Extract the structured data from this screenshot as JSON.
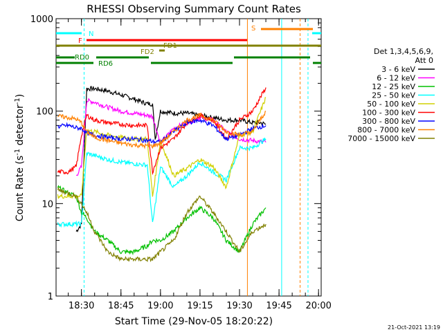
{
  "chart_data": {
    "type": "line",
    "title": "RHESSI Observing Summary Count Rates",
    "xlabel": "Start Time (29-Nov-05 18:20:22)",
    "ylabel_main": "Count Rate (s",
    "ylabel_sup": "-1",
    "ylabel_mid": " detector",
    "ylabel_end": ")",
    "footer": "21-Oct-2021 13:19",
    "yscale": "log",
    "ylim": [
      1,
      1000
    ],
    "xlim_minutes": [
      18.33,
      20.0
    ],
    "x_ticks": [
      "18:30",
      "18:45",
      "19:00",
      "19:15",
      "19:30",
      "19:45",
      "20:00"
    ],
    "y_ticks": [
      "1",
      "10",
      "100",
      "1000"
    ],
    "legend_header": [
      "Det 1,3,4,5,6,9,",
      "Att 0"
    ],
    "legend_placement": "right",
    "series": [
      {
        "name": "3 - 6 keV",
        "color": "#000000",
        "x": [
          "18:23",
          "18:25",
          "18:28",
          "18:30",
          "18:32",
          "18:35",
          "18:40",
          "18:45",
          "18:50",
          "18:55",
          "18:57",
          "18:58",
          "19:00",
          "19:05",
          "19:10",
          "19:15",
          "19:20",
          "19:25",
          "19:30",
          "19:35",
          "19:38",
          "19:40"
        ],
        "y": [
          null,
          null,
          5,
          6,
          175,
          175,
          165,
          150,
          135,
          120,
          120,
          50,
          100,
          95,
          95,
          90,
          85,
          80,
          80,
          75,
          75,
          72
        ]
      },
      {
        "name": "6 - 12 keV",
        "color": "#ff00ff",
        "x": [
          "18:23",
          "18:25",
          "18:28",
          "18:30",
          "18:32",
          "18:35",
          "18:40",
          "18:45",
          "18:50",
          "18:55",
          "18:57",
          "19:00",
          "19:05",
          "19:10",
          "19:15",
          "19:20",
          "19:25",
          "19:30",
          "19:35",
          "19:40"
        ],
        "y": [
          null,
          null,
          20,
          25,
          130,
          125,
          110,
          100,
          95,
          90,
          88,
          45,
          65,
          75,
          85,
          80,
          60,
          50,
          48,
          46
        ]
      },
      {
        "name": "12 - 25 keV",
        "color": "#00c000",
        "x": [
          "18:21",
          "18:25",
          "18:28",
          "18:30",
          "18:32",
          "18:35",
          "18:40",
          "18:45",
          "18:50",
          "18:55",
          "18:57",
          "19:00",
          "19:05",
          "19:10",
          "19:15",
          "19:20",
          "19:25",
          "19:30",
          "19:35",
          "19:40"
        ],
        "y": [
          15,
          13,
          12,
          8,
          7,
          5,
          4,
          3,
          3,
          3.5,
          4,
          4,
          5,
          7,
          9,
          7,
          4,
          3,
          6,
          9
        ]
      },
      {
        "name": "25 - 50 keV",
        "color": "#00ffff",
        "x": [
          "18:21",
          "18:25",
          "18:28",
          "18:30",
          "18:32",
          "18:35",
          "18:40",
          "18:45",
          "18:50",
          "18:55",
          "18:57",
          "19:00",
          "19:05",
          "19:10",
          "19:15",
          "19:20",
          "19:25",
          "19:30",
          "19:35",
          "19:40"
        ],
        "y": [
          6,
          6,
          6,
          6,
          35,
          33,
          30,
          28,
          27,
          26,
          6,
          25,
          15,
          20,
          28,
          22,
          18,
          40,
          40,
          50
        ]
      },
      {
        "name": "50 - 100 keV",
        "color": "#d0d000",
        "x": [
          "18:21",
          "18:25",
          "18:28",
          "18:30",
          "18:32",
          "18:35",
          "18:40",
          "18:45",
          "18:50",
          "18:55",
          "18:57",
          "19:00",
          "19:05",
          "19:10",
          "19:15",
          "19:20",
          "19:25",
          "19:30",
          "19:35",
          "19:40"
        ],
        "y": [
          12,
          12,
          12,
          12,
          62,
          60,
          55,
          52,
          50,
          50,
          12,
          48,
          20,
          24,
          30,
          25,
          15,
          55,
          60,
          140
        ]
      },
      {
        "name": "100 - 300 keV",
        "color": "#ff0000",
        "x": [
          "18:21",
          "18:25",
          "18:28",
          "18:30",
          "18:32",
          "18:35",
          "18:40",
          "18:45",
          "18:50",
          "18:55",
          "18:57",
          "19:00",
          "19:05",
          "19:10",
          "19:15",
          "19:20",
          "19:25",
          "19:30",
          "19:35",
          "19:40"
        ],
        "y": [
          22,
          22,
          25,
          55,
          90,
          80,
          75,
          72,
          70,
          70,
          22,
          40,
          50,
          75,
          90,
          80,
          50,
          80,
          100,
          180
        ]
      },
      {
        "name": "300 - 800 keV",
        "color": "#0000ff",
        "x": [
          "18:21",
          "18:25",
          "18:28",
          "18:30",
          "18:32",
          "18:35",
          "18:40",
          "18:45",
          "18:50",
          "18:55",
          "18:57",
          "19:00",
          "19:05",
          "19:10",
          "19:15",
          "19:20",
          "19:25",
          "19:30",
          "19:35",
          "19:40"
        ],
        "y": [
          68,
          70,
          66,
          65,
          58,
          55,
          52,
          50,
          50,
          48,
          47,
          46,
          60,
          75,
          80,
          70,
          50,
          55,
          65,
          70
        ]
      },
      {
        "name": "800 - 7000 keV",
        "color": "#ff8000",
        "x": [
          "18:21",
          "18:25",
          "18:28",
          "18:30",
          "18:32",
          "18:35",
          "18:40",
          "18:45",
          "18:50",
          "18:55",
          "18:57",
          "19:00",
          "19:05",
          "19:10",
          "19:15",
          "19:20",
          "19:25",
          "19:30",
          "19:35",
          "19:40"
        ],
        "y": [
          88,
          85,
          82,
          75,
          60,
          52,
          48,
          45,
          43,
          42,
          42,
          45,
          60,
          80,
          90,
          80,
          60,
          55,
          60,
          100
        ]
      },
      {
        "name": "7000 - 15000 keV",
        "color": "#808000",
        "x": [
          "18:21",
          "18:25",
          "18:28",
          "18:30",
          "18:32",
          "18:35",
          "18:40",
          "18:45",
          "18:50",
          "18:55",
          "18:57",
          "19:00",
          "19:05",
          "19:10",
          "19:15",
          "19:20",
          "19:25",
          "19:30",
          "19:35",
          "19:40"
        ],
        "y": [
          14,
          13,
          12,
          10,
          8,
          5,
          3,
          2.5,
          2.5,
          2.5,
          2.5,
          3,
          4,
          8,
          12,
          8,
          5,
          3,
          5,
          6
        ]
      }
    ],
    "flags": [
      {
        "label": "N",
        "color": "#00ffff"
      },
      {
        "label": "F",
        "color": "#ff0000"
      },
      {
        "label": "FD1",
        "color": "#808000"
      },
      {
        "label": "FD2",
        "color": "#808000"
      },
      {
        "label": "RD0",
        "color": "#008000"
      },
      {
        "label": "RD6",
        "color": "#008000"
      },
      {
        "label": "S",
        "color": "#ff8000"
      }
    ]
  }
}
